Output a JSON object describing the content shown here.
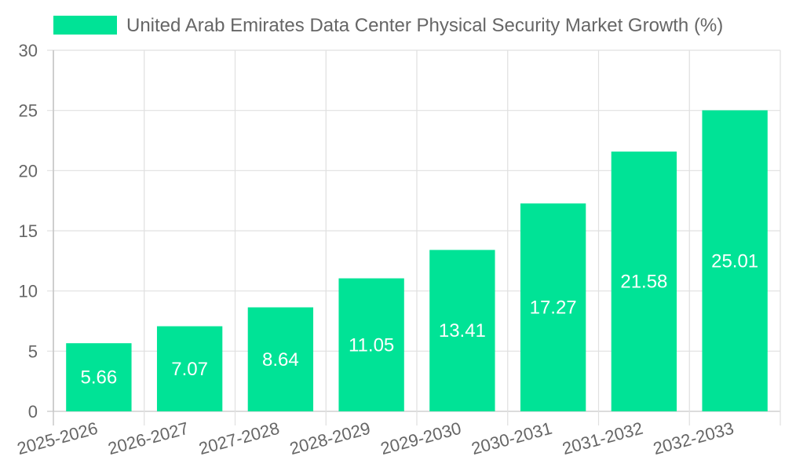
{
  "colors": {
    "bar": "#00e396",
    "grid": "#e0e0e0",
    "axis": "#c8c8c8",
    "text": "#666666",
    "bar_label": "#ffffff"
  },
  "chart_data": {
    "type": "bar",
    "title": "",
    "legend": {
      "label": "United Arab Emirates Data Center Physical Security Market Growth (%)",
      "position": "top"
    },
    "categories": [
      "2025-2026",
      "2026-2027",
      "2027-2028",
      "2028-2029",
      "2029-2030",
      "2030-2031",
      "2031-2032",
      "2032-2033"
    ],
    "series": [
      {
        "name": "United Arab Emirates Data Center Physical Security Market Growth (%)",
        "values": [
          5.66,
          7.07,
          8.64,
          11.05,
          13.41,
          17.27,
          21.58,
          25.01
        ]
      }
    ],
    "xlabel": "",
    "ylabel": "",
    "ylim": [
      0,
      30
    ],
    "yticks": [
      0,
      5,
      10,
      15,
      20,
      25,
      30
    ],
    "grid": true
  }
}
